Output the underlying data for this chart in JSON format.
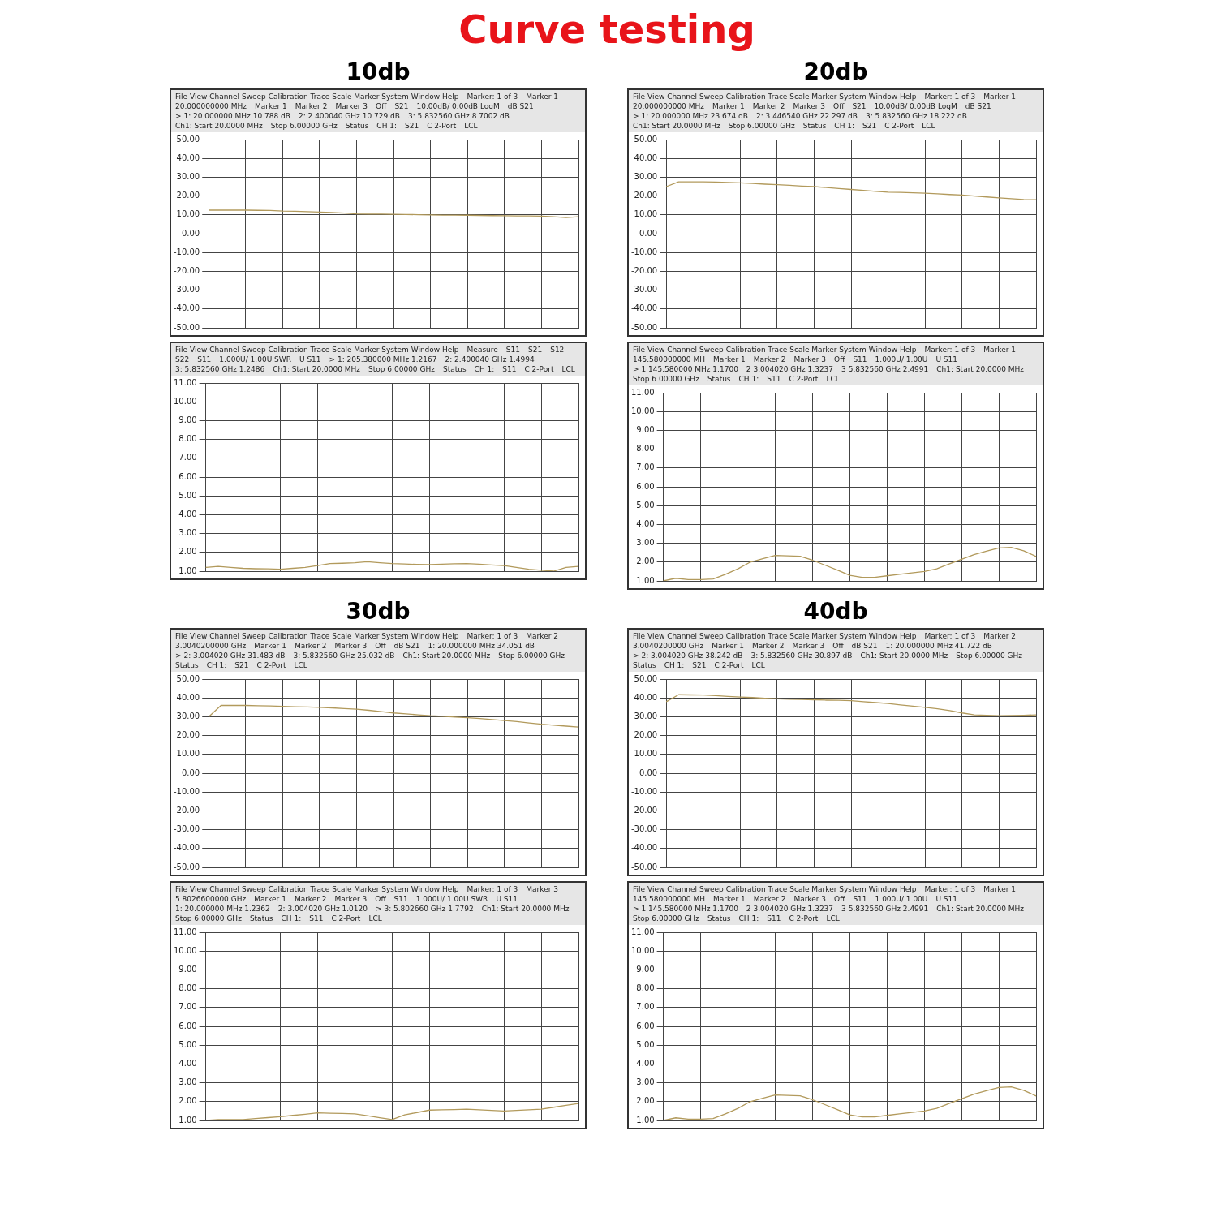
{
  "chart_data": [
    {
      "type": "line",
      "title": "Curve testing",
      "subtitle": "10db",
      "grid": true,
      "tick_labels": "y",
      "categories": [
        null,
        null,
        null,
        null,
        null,
        null,
        null,
        null,
        null,
        null,
        null,
        null,
        null,
        null,
        null,
        null,
        null,
        null,
        null,
        null,
        null,
        null,
        null,
        null,
        null,
        null,
        null,
        null,
        null,
        null,
        null
      ],
      "ylim": [
        -50,
        50
      ],
      "yticks": [
        {
          "value": -50,
          "label": "-50.00"
        },
        {
          "value": -40,
          "label": "-40.00"
        },
        {
          "value": -30,
          "label": "-30.00"
        },
        {
          "value": -20,
          "label": "-20.00"
        },
        {
          "value": -10,
          "label": "-10.00"
        },
        {
          "value": 0,
          "label": "0.00"
        },
        {
          "value": 10,
          "label": "10.00"
        },
        {
          "value": 20,
          "label": "20.00"
        },
        {
          "value": 30,
          "label": "30.00"
        },
        {
          "value": 40,
          "label": "40.00"
        },
        {
          "value": 50,
          "label": "50.00"
        }
      ],
      "series": [
        {
          "color": "#b29a5c",
          "values": [
            12.5,
            12.5,
            12.5,
            12.5,
            12.4,
            12.3,
            12,
            11.9,
            11.7,
            11.5,
            11.2,
            10.9,
            10.5,
            10.4,
            10.4,
            10.3,
            10.2,
            10.1,
            10,
            9.9,
            9.9,
            9.8,
            9.7,
            9.6,
            9.5,
            9.4,
            9.4,
            9.3,
            9,
            8.6,
            9
          ]
        }
      ],
      "annotations": [
        "File View Channel Sweep Calibration Trace Scale Marker System Window Help",
        "Marker: 1 of 3",
        "Marker 1",
        "20.000000000 MHz",
        "Marker 1",
        "Marker 2",
        "Marker 3",
        "Off",
        "S21",
        "10.00dB/ 0.00dB LogM",
        "dB S21",
        "> 1: 20.000000 MHz 10.788 dB",
        "2: 2.400040 GHz 10.729 dB",
        "3: 5.832560 GHz 8.7002 dB",
        "Ch1: Start 20.0000 MHz",
        "Stop 6.00000 GHz",
        "Status",
        "CH 1:",
        "S21",
        "C 2-Port",
        "LCL"
      ]
    },
    {
      "type": "line",
      "grid": true,
      "tick_labels": "y",
      "categories": [
        null,
        null,
        null,
        null,
        null,
        null,
        null,
        null,
        null,
        null,
        null,
        null,
        null,
        null,
        null,
        null,
        null,
        null,
        null,
        null,
        null,
        null,
        null,
        null,
        null,
        null,
        null,
        null,
        null,
        null,
        null
      ],
      "ylim": [
        1,
        11
      ],
      "yticks": [
        {
          "value": 1,
          "label": "1.00"
        },
        {
          "value": 2,
          "label": "2.00"
        },
        {
          "value": 3,
          "label": "3.00"
        },
        {
          "value": 4,
          "label": "4.00"
        },
        {
          "value": 5,
          "label": "5.00"
        },
        {
          "value": 6,
          "label": "6.00"
        },
        {
          "value": 7,
          "label": "7.00"
        },
        {
          "value": 8,
          "label": "8.00"
        },
        {
          "value": 9,
          "label": "9.00"
        },
        {
          "value": 10,
          "label": "10.00"
        },
        {
          "value": 11,
          "label": "11.00"
        }
      ],
      "series": [
        {
          "color": "#b29a5c",
          "values": [
            1.2,
            1.25,
            1.2,
            1.15,
            1.13,
            1.12,
            1.1,
            1.15,
            1.2,
            1.3,
            1.4,
            1.42,
            1.45,
            1.5,
            1.45,
            1.4,
            1.38,
            1.36,
            1.35,
            1.37,
            1.39,
            1.4,
            1.37,
            1.33,
            1.3,
            1.2,
            1.1,
            1.05,
            1.0,
            1.2,
            1.25
          ]
        }
      ],
      "annotations": [
        "File View Channel Sweep Calibration Trace Scale Marker System Window Help",
        "Measure",
        "S11",
        "S21",
        "S12",
        "S22",
        "S11",
        "1.000U/ 1.00U SWR",
        "U S11",
        "> 1: 205.380000 MHz 1.2167",
        "2: 2.400040 GHz 1.4994",
        "3: 5.832560 GHz 1.2486",
        "Ch1: Start 20.0000 MHz",
        "Stop 6.00000 GHz",
        "Status",
        "CH 1:",
        "S11",
        "C 2-Port",
        "LCL"
      ]
    },
    {
      "type": "line",
      "title": "20db",
      "grid": true,
      "tick_labels": "y",
      "categories": [
        null,
        null,
        null,
        null,
        null,
        null,
        null,
        null,
        null,
        null,
        null,
        null,
        null,
        null,
        null,
        null,
        null,
        null,
        null,
        null,
        null,
        null,
        null,
        null,
        null,
        null,
        null,
        null,
        null,
        null,
        null
      ],
      "ylim": [
        -50,
        50
      ],
      "yticks": [
        {
          "value": -50,
          "label": "-50.00"
        },
        {
          "value": -40,
          "label": "-40.00"
        },
        {
          "value": -30,
          "label": "-30.00"
        },
        {
          "value": -20,
          "label": "-20.00"
        },
        {
          "value": -10,
          "label": "-10.00"
        },
        {
          "value": 0,
          "label": "0.00"
        },
        {
          "value": 10,
          "label": "10.00"
        },
        {
          "value": 20,
          "label": "20.00"
        },
        {
          "value": 30,
          "label": "30.00"
        },
        {
          "value": 40,
          "label": "40.00"
        },
        {
          "value": 50,
          "label": "50.00"
        }
      ],
      "series": [
        {
          "color": "#b29a5c",
          "values": [
            25,
            27.5,
            27.5,
            27.5,
            27.4,
            27.2,
            27,
            26.7,
            26.3,
            26,
            25.7,
            25.3,
            25,
            24.5,
            24,
            23.5,
            23,
            22.5,
            22,
            21.9,
            21.7,
            21.5,
            21.2,
            20.8,
            20.5,
            20,
            19.5,
            19,
            18.6,
            18.2,
            18
          ]
        }
      ],
      "annotations": [
        "File View Channel Sweep Calibration Trace Scale Marker System Window Help",
        "Marker: 1 of 3",
        "Marker 1",
        "20.000000000 MHz",
        "Marker 1",
        "Marker 2",
        "Marker 3",
        "Off",
        "S21",
        "10.00dB/ 0.00dB LogM",
        "dB S21",
        "> 1: 20.000000 MHz 23.674 dB",
        "2: 3.446540 GHz 22.297 dB",
        "3: 5.832560 GHz 18.222 dB",
        "Ch1: Start 20.0000 MHz",
        "Stop 6.00000 GHz",
        "Status",
        "CH 1:",
        "S21",
        "C 2-Port",
        "LCL"
      ]
    },
    {
      "type": "line",
      "grid": true,
      "tick_labels": "y",
      "categories": [
        null,
        null,
        null,
        null,
        null,
        null,
        null,
        null,
        null,
        null,
        null,
        null,
        null,
        null,
        null,
        null,
        null,
        null,
        null,
        null,
        null,
        null,
        null,
        null,
        null,
        null,
        null,
        null,
        null,
        null,
        null
      ],
      "ylim": [
        1,
        11
      ],
      "yticks": [
        {
          "value": 1,
          "label": "1.00"
        },
        {
          "value": 2,
          "label": "2.00"
        },
        {
          "value": 3,
          "label": "3.00"
        },
        {
          "value": 4,
          "label": "4.00"
        },
        {
          "value": 5,
          "label": "5.00"
        },
        {
          "value": 6,
          "label": "6.00"
        },
        {
          "value": 7,
          "label": "7.00"
        },
        {
          "value": 8,
          "label": "8.00"
        },
        {
          "value": 9,
          "label": "9.00"
        },
        {
          "value": 10,
          "label": "10.00"
        },
        {
          "value": 11,
          "label": "11.00"
        }
      ],
      "series": [
        {
          "color": "#b29a5c",
          "values": [
            1.0,
            1.14,
            1.07,
            1.07,
            1.1,
            1.35,
            1.64,
            2.0,
            2.18,
            2.35,
            2.33,
            2.31,
            2.1,
            1.84,
            1.58,
            1.3,
            1.19,
            1.19,
            1.27,
            1.35,
            1.43,
            1.5,
            1.64,
            1.9,
            2.15,
            2.4,
            2.58,
            2.75,
            2.78,
            2.6,
            2.3
          ]
        }
      ],
      "annotations": [
        "File View Channel Sweep Calibration Trace Scale Marker System Window Help",
        "Marker: 1 of 3",
        "Marker 1",
        "145.580000000 MH",
        "Marker 1",
        "Marker 2",
        "Marker 3",
        "Off",
        "S11",
        "1.000U/ 1.00U",
        "U S11",
        "> 1 145.580000 MHz 1.1700",
        "2 3.004020 GHz 1.3237",
        "3 5.832560 GHz 2.4991",
        "Ch1: Start 20.0000 MHz",
        "Stop 6.00000 GHz",
        "Status",
        "CH 1:",
        "S11",
        "C 2-Port",
        "LCL"
      ]
    },
    {
      "type": "line",
      "title": "30db",
      "grid": true,
      "tick_labels": "y",
      "categories": [
        null,
        null,
        null,
        null,
        null,
        null,
        null,
        null,
        null,
        null,
        null,
        null,
        null,
        null,
        null,
        null,
        null,
        null,
        null,
        null,
        null,
        null,
        null,
        null,
        null,
        null,
        null,
        null,
        null,
        null,
        null
      ],
      "ylim": [
        -50,
        50
      ],
      "yticks": [
        {
          "value": -50,
          "label": "-50.00"
        },
        {
          "value": -40,
          "label": "-40.00"
        },
        {
          "value": -30,
          "label": "-30.00"
        },
        {
          "value": -20,
          "label": "-20.00"
        },
        {
          "value": -10,
          "label": "-10.00"
        },
        {
          "value": 0,
          "label": "0.00"
        },
        {
          "value": 10,
          "label": "10.00"
        },
        {
          "value": 20,
          "label": "20.00"
        },
        {
          "value": 30,
          "label": "30.00"
        },
        {
          "value": 40,
          "label": "40.00"
        },
        {
          "value": 50,
          "label": "50.00"
        }
      ],
      "series": [
        {
          "color": "#b29a5c",
          "values": [
            30,
            36,
            36,
            36,
            35.8,
            35.7,
            35.5,
            35.3,
            35.2,
            35,
            34.7,
            34.3,
            34,
            33.4,
            32.7,
            32,
            31.5,
            31,
            30.5,
            30.2,
            29.8,
            29.5,
            29,
            28.5,
            28,
            27.4,
            26.7,
            26,
            25.5,
            25,
            24.5
          ]
        }
      ],
      "annotations": [
        "File View Channel Sweep Calibration Trace Scale Marker System Window Help",
        "Marker: 1 of 3",
        "Marker 2",
        "3.0040200000 GHz",
        "Marker 1",
        "Marker 2",
        "Marker 3",
        "Off",
        "dB S21",
        "1: 20.000000 MHz 34.051 dB",
        "> 2: 3.004020 GHz 31.483 dB",
        "3: 5.832560 GHz 25.032 dB",
        "Ch1: Start 20.0000 MHz",
        "Stop 6.00000 GHz",
        "Status",
        "CH 1:",
        "S21",
        "C 2-Port",
        "LCL"
      ]
    },
    {
      "type": "line",
      "grid": true,
      "tick_labels": "y",
      "categories": [
        null,
        null,
        null,
        null,
        null,
        null,
        null,
        null,
        null,
        null,
        null,
        null,
        null,
        null,
        null,
        null,
        null,
        null,
        null,
        null,
        null,
        null,
        null,
        null,
        null,
        null,
        null,
        null,
        null,
        null,
        null
      ],
      "ylim": [
        1,
        11
      ],
      "yticks": [
        {
          "value": 1,
          "label": "1.00"
        },
        {
          "value": 2,
          "label": "2.00"
        },
        {
          "value": 3,
          "label": "3.00"
        },
        {
          "value": 4,
          "label": "4.00"
        },
        {
          "value": 5,
          "label": "5.00"
        },
        {
          "value": 6,
          "label": "6.00"
        },
        {
          "value": 7,
          "label": "7.00"
        },
        {
          "value": 8,
          "label": "8.00"
        },
        {
          "value": 9,
          "label": "9.00"
        },
        {
          "value": 10,
          "label": "10.00"
        },
        {
          "value": 11,
          "label": "11.00"
        }
      ],
      "series": [
        {
          "color": "#b29a5c",
          "values": [
            1.0,
            1.05,
            1.05,
            1.05,
            1.1,
            1.15,
            1.2,
            1.27,
            1.33,
            1.4,
            1.38,
            1.37,
            1.35,
            1.25,
            1.15,
            1.05,
            1.3,
            1.42,
            1.55,
            1.57,
            1.58,
            1.6,
            1.57,
            1.53,
            1.5,
            1.53,
            1.57,
            1.6,
            1.7,
            1.8,
            1.9
          ]
        }
      ],
      "annotations": [
        "File View Channel Sweep Calibration Trace Scale Marker System Window Help",
        "Marker: 1 of 3",
        "Marker 3",
        "5.8026600000 GHz",
        "Marker 1",
        "Marker 2",
        "Marker 3",
        "Off",
        "S11",
        "1.000U/ 1.00U SWR",
        "U S11",
        "1: 20.000000 MHz 1.2362",
        "2: 3.004020 GHz 1.0120",
        "> 3: 5.802660 GHz 1.7792",
        "Ch1: Start 20.0000 MHz",
        "Stop 6.00000 GHz",
        "Status",
        "CH 1:",
        "S11",
        "C 2-Port",
        "LCL"
      ]
    },
    {
      "type": "line",
      "title": "40db",
      "grid": true,
      "tick_labels": "y",
      "categories": [
        null,
        null,
        null,
        null,
        null,
        null,
        null,
        null,
        null,
        null,
        null,
        null,
        null,
        null,
        null,
        null,
        null,
        null,
        null,
        null,
        null,
        null,
        null,
        null,
        null,
        null,
        null,
        null,
        null,
        null,
        null
      ],
      "ylim": [
        -50,
        50
      ],
      "yticks": [
        {
          "value": -50,
          "label": "-50.00"
        },
        {
          "value": -40,
          "label": "-40.00"
        },
        {
          "value": -30,
          "label": "-30.00"
        },
        {
          "value": -20,
          "label": "-20.00"
        },
        {
          "value": -10,
          "label": "-10.00"
        },
        {
          "value": 0,
          "label": "0.00"
        },
        {
          "value": 10,
          "label": "10.00"
        },
        {
          "value": 20,
          "label": "20.00"
        },
        {
          "value": 30,
          "label": "30.00"
        },
        {
          "value": 40,
          "label": "40.00"
        },
        {
          "value": 50,
          "label": "50.00"
        }
      ],
      "series": [
        {
          "color": "#b29a5c",
          "values": [
            38,
            41.7,
            41.6,
            41.5,
            41.2,
            40.8,
            40.5,
            40.2,
            39.8,
            39.5,
            39.3,
            39.2,
            39,
            38.8,
            38.7,
            38.5,
            38,
            37.5,
            37,
            36.3,
            35.6,
            35,
            34.2,
            33.2,
            32,
            31,
            30.8,
            30.5,
            30.6,
            30.8,
            31
          ]
        }
      ],
      "annotations": [
        "File View Channel Sweep Calibration Trace Scale Marker System Window Help",
        "Marker: 1 of 3",
        "Marker 2",
        "3.0040200000 GHz",
        "Marker 1",
        "Marker 2",
        "Marker 3",
        "Off",
        "dB S21",
        "1: 20.000000 MHz 41.722 dB",
        "> 2: 3.004020 GHz 38.242 dB",
        "3: 5.832560 GHz 30.897 dB",
        "Ch1: Start 20.0000 MHz",
        "Stop 6.00000 GHz",
        "Status",
        "CH 1:",
        "S21",
        "C 2-Port",
        "LCL"
      ]
    },
    {
      "type": "line",
      "grid": true,
      "tick_labels": "y",
      "categories": [
        null,
        null,
        null,
        null,
        null,
        null,
        null,
        null,
        null,
        null,
        null,
        null,
        null,
        null,
        null,
        null,
        null,
        null,
        null,
        null,
        null,
        null,
        null,
        null,
        null,
        null,
        null,
        null,
        null,
        null,
        null
      ],
      "ylim": [
        1,
        11
      ],
      "yticks": [
        {
          "value": 1,
          "label": "1.00"
        },
        {
          "value": 2,
          "label": "2.00"
        },
        {
          "value": 3,
          "label": "3.00"
        },
        {
          "value": 4,
          "label": "4.00"
        },
        {
          "value": 5,
          "label": "5.00"
        },
        {
          "value": 6,
          "label": "6.00"
        },
        {
          "value": 7,
          "label": "7.00"
        },
        {
          "value": 8,
          "label": "8.00"
        },
        {
          "value": 9,
          "label": "9.00"
        },
        {
          "value": 10,
          "label": "10.00"
        },
        {
          "value": 11,
          "label": "11.00"
        }
      ],
      "series": [
        {
          "color": "#b29a5c",
          "values": [
            1.0,
            1.14,
            1.07,
            1.07,
            1.1,
            1.35,
            1.64,
            2.0,
            2.18,
            2.35,
            2.33,
            2.31,
            2.1,
            1.84,
            1.58,
            1.3,
            1.19,
            1.19,
            1.27,
            1.35,
            1.43,
            1.5,
            1.64,
            1.9,
            2.15,
            2.4,
            2.58,
            2.75,
            2.78,
            2.6,
            2.3
          ]
        }
      ],
      "annotations": [
        "File View Channel Sweep Calibration Trace Scale Marker System Window Help",
        "Marker: 1 of 3",
        "Marker 1",
        "145.580000000 MH",
        "Marker 1",
        "Marker 2",
        "Marker 3",
        "Off",
        "S11",
        "1.000U/ 1.00U",
        "U S11",
        "> 1 145.580000 MHz 1.1700",
        "2 3.004020 GHz 1.3237",
        "3 5.832560 GHz 2.4991",
        "Ch1: Start 20.0000 MHz",
        "Stop 6.00000 GHz",
        "Status",
        "CH 1:",
        "S11",
        "C 2-Port",
        "LCL"
      ]
    }
  ]
}
